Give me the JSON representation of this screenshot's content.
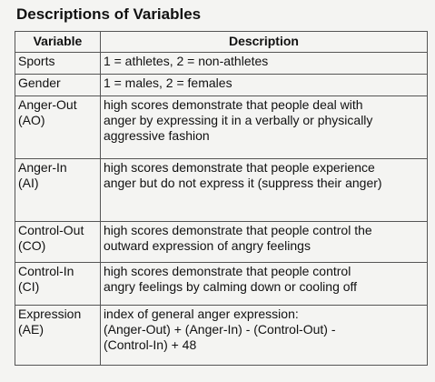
{
  "title": "Descriptions of Variables",
  "table": {
    "headers": [
      "Variable",
      "Description"
    ],
    "rows": [
      {
        "variable": "Sports",
        "description": "1 = athletes, 2 = non-athletes"
      },
      {
        "variable": "Gender",
        "description": "1 = males, 2 = females"
      },
      {
        "variable": "Anger-Out\n(AO)",
        "description": "high scores demonstrate that people deal with\nanger by expressing it in a verbally or physically\naggressive fashion"
      },
      {
        "variable": "Anger-In\n(AI)",
        "description": "high scores demonstrate that people experience\nanger but do not express it (suppress their anger)"
      },
      {
        "variable": "Control-Out\n(CO)",
        "description": "high scores demonstrate that people control the\noutward expression of angry feelings"
      },
      {
        "variable": "Control-In\n(CI)",
        "description": "high scores demonstrate that people control\nangry feelings by calming down or cooling off"
      },
      {
        "variable": "Expression\n(AE)",
        "description": "index of general anger expression:\n(Anger-Out) + (Anger-In) - (Control-Out) -\n(Control-In) + 48"
      }
    ]
  }
}
